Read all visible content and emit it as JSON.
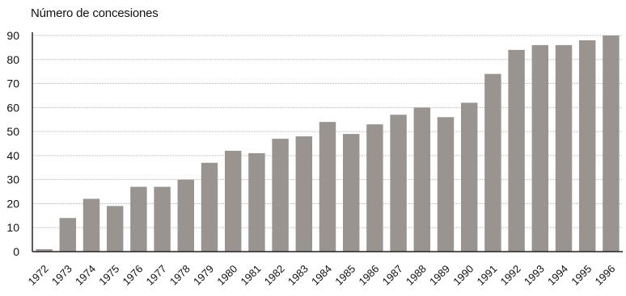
{
  "chart_data": {
    "type": "bar",
    "title": "",
    "xlabel": "",
    "ylabel": "Número de concesiones",
    "ylim": [
      0,
      90
    ],
    "yticks": [
      0,
      10,
      20,
      30,
      40,
      50,
      60,
      70,
      80,
      90
    ],
    "grid": true,
    "categories": [
      "1972",
      "1973",
      "1974",
      "1975",
      "1976",
      "1977",
      "1978",
      "1979",
      "1980",
      "1981",
      "1982",
      "1983",
      "1984",
      "1985",
      "1986",
      "1987",
      "1988",
      "1989",
      "1990",
      "1991",
      "1992",
      "1993",
      "1994",
      "1995",
      "1996"
    ],
    "values": [
      1,
      14,
      22,
      19,
      27,
      27,
      30,
      37,
      42,
      41,
      47,
      48,
      54,
      49,
      53,
      57,
      60,
      56,
      62,
      74,
      84,
      86,
      86,
      88,
      90
    ],
    "colors": {
      "bar": "#9a9490",
      "grid": "#b5b5b5",
      "axis": "#222222"
    }
  }
}
